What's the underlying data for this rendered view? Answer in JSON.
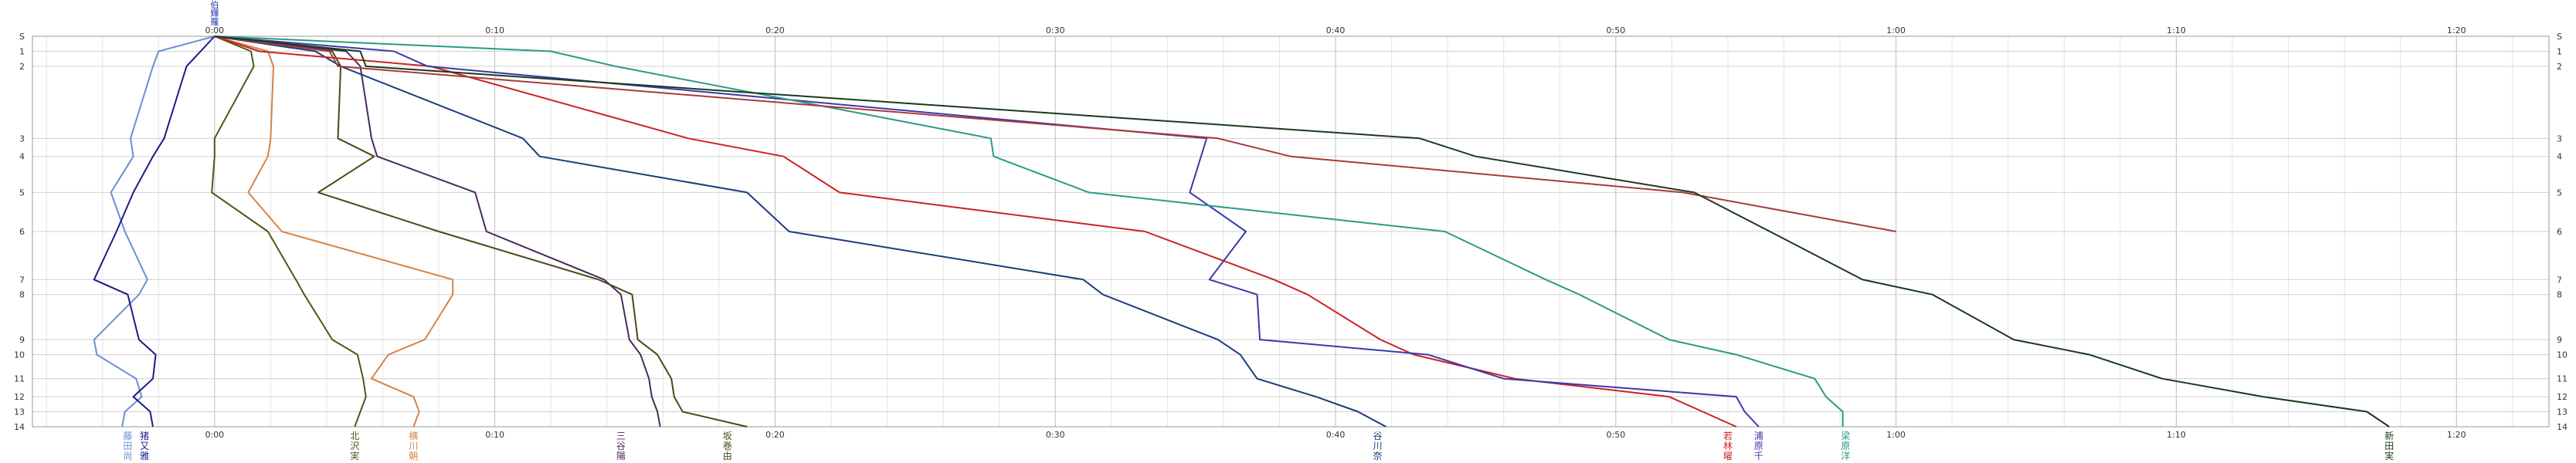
{
  "chart_data": {
    "type": "line",
    "title": "",
    "xlabel": "",
    "ylabel": "",
    "x_axis": {
      "unit": "minutes",
      "ticks": [
        {
          "value": 0,
          "label": "0:00"
        },
        {
          "value": 10,
          "label": "0:10"
        },
        {
          "value": 20,
          "label": "0:20"
        },
        {
          "value": 30,
          "label": "0:30"
        },
        {
          "value": 40,
          "label": "0:40"
        },
        {
          "value": 50,
          "label": "0:50"
        },
        {
          "value": 60,
          "label": "1:00"
        },
        {
          "value": 70,
          "label": "1:10"
        },
        {
          "value": 80,
          "label": "1:20"
        }
      ],
      "range": [
        -6.5,
        83.3
      ]
    },
    "y_axis": {
      "ticks": [
        {
          "value": 0,
          "label": "S"
        },
        {
          "value": 1,
          "label": "1"
        },
        {
          "value": 2,
          "label": "2"
        },
        {
          "value": 3,
          "label": "3"
        },
        {
          "value": 4,
          "label": "4"
        },
        {
          "value": 5,
          "label": "5"
        },
        {
          "value": 6,
          "label": "6"
        },
        {
          "value": 7,
          "label": "7"
        },
        {
          "value": 8,
          "label": "8"
        },
        {
          "value": 9,
          "label": "9"
        },
        {
          "value": 10,
          "label": "10"
        },
        {
          "value": 11,
          "label": "11"
        },
        {
          "value": 12,
          "label": "12"
        },
        {
          "value": 13,
          "label": "13"
        },
        {
          "value": 14,
          "label": "14"
        }
      ],
      "positions": [
        0,
        0.5,
        1,
        3.4,
        4,
        5.2,
        6.5,
        8.1,
        8.6,
        10.1,
        10.6,
        11.4,
        12,
        12.5,
        13
      ]
    },
    "grid": true,
    "top_markers": [
      {
        "text": "伯",
        "color": "#2233aa"
      },
      {
        "text": "輝",
        "color": "#2233aa"
      },
      {
        "text": "羅",
        "color": "#2233aa"
      }
    ],
    "series": [
      {
        "name": "藤田尚",
        "label_time": -3.1,
        "color": "#6a8ed6",
        "times": [
          0,
          -2,
          -2.2,
          -3,
          -2.9,
          -3.7,
          -3.2,
          -2.4,
          -2.7,
          -4.3,
          -4.2,
          -2.8,
          -2.6,
          -3.2,
          -3.3
        ],
        "rows": [
          0,
          0.5,
          1,
          3.4,
          4,
          5.2,
          6.5,
          8.1,
          8.6,
          10.1,
          10.6,
          11.4,
          12,
          12.5,
          13
        ]
      },
      {
        "name": "猪又雅",
        "label_time": -2.5,
        "color": "#1a1a8a",
        "times": [
          0,
          -0.5,
          -1,
          -1.8,
          -2.2,
          -2.9,
          -3.5,
          -4.3,
          -3.1,
          -2.7,
          -2.1,
          -2.2,
          -2.9,
          -2.3,
          -2.2
        ],
        "rows": [
          0,
          0.5,
          1,
          3.4,
          4,
          5.2,
          6.5,
          8.1,
          8.6,
          10.1,
          10.6,
          11.4,
          12,
          12.5,
          13
        ]
      },
      {
        "name": "北沢実",
        "label_time": 5,
        "color": "#4a5a1a",
        "times": [
          0,
          1.3,
          1.4,
          0,
          0,
          -0.1,
          1.9,
          2.9,
          3.2,
          4.2,
          5.1,
          5.3,
          5.4,
          5.2,
          5
        ],
        "rows": [
          0,
          0.5,
          1,
          3.4,
          4,
          5.2,
          6.5,
          8.1,
          8.6,
          10.1,
          10.6,
          11.4,
          12,
          12.5,
          13
        ]
      },
      {
        "name": "横川朝",
        "label_time": 7.1,
        "color": "#d4844a",
        "times": [
          0,
          1.9,
          2.1,
          2,
          1.9,
          1.2,
          2.4,
          8.5,
          8.5,
          7.5,
          6.2,
          5.6,
          7.1,
          7.3,
          7.1
        ],
        "rows": [
          0,
          0.5,
          1,
          3.4,
          4,
          5.2,
          6.5,
          8.1,
          8.6,
          10.1,
          10.6,
          11.4,
          12,
          12.5,
          13
        ]
      },
      {
        "name": "三谷陽",
        "label_time": 14.5,
        "color": "#4a2a5a",
        "times": [
          0,
          4.7,
          5.2,
          5.6,
          5.8,
          9.3,
          9.7,
          13.9,
          14.5,
          14.8,
          15.2,
          15.5,
          15.6,
          15.8,
          15.9
        ],
        "rows": [
          0,
          0.5,
          1,
          3.4,
          4,
          5.2,
          6.5,
          8.1,
          8.6,
          10.1,
          10.6,
          11.4,
          12,
          12.5,
          13
        ]
      },
      {
        "name": "坂巻由",
        "label_time": 18.3,
        "color": "#4a4a1a",
        "times": [
          0,
          4.2,
          4.5,
          4.4,
          5.7,
          3.7,
          8,
          13.7,
          14.9,
          15.1,
          15.8,
          16.3,
          16.4,
          16.7,
          19
        ],
        "rows": [
          0,
          0.5,
          1,
          3.4,
          4,
          5.2,
          6.5,
          8.1,
          8.6,
          10.1,
          10.6,
          11.4,
          12,
          12.5,
          13
        ]
      },
      {
        "name": "谷川奈",
        "label_time": 41.5,
        "color": "#1a3e7a",
        "times": [
          0,
          3.6,
          4.5,
          11,
          11.6,
          19,
          20.5,
          31,
          31.7,
          35.8,
          36.6,
          37.2,
          39.3,
          40.8,
          41.8
        ],
        "rows": [
          0,
          0.5,
          1,
          3.4,
          4,
          5.2,
          6.5,
          8.1,
          8.6,
          10.1,
          10.6,
          11.4,
          12,
          12.5,
          13
        ]
      },
      {
        "name": "若林曜",
        "label_time": 54,
        "color": "#cc2222",
        "times": [
          0,
          1.6,
          7.7,
          16.9,
          20.3,
          22.3,
          33.2,
          37.8,
          39,
          41.6,
          42.8,
          46.4,
          51.9,
          53.1,
          54.3
        ],
        "rows": [
          0,
          0.5,
          1,
          3.4,
          4,
          5.2,
          6.5,
          8.1,
          8.6,
          10.1,
          10.6,
          11.4,
          12,
          12.5,
          13
        ]
      },
      {
        "name": "浦原千",
        "label_time": 55.1,
        "color": "#3a3aaa",
        "times": [
          0,
          6.4,
          7.6,
          35.4,
          35.2,
          34.8,
          36.8,
          35.5,
          37.2,
          37.3,
          43.3,
          46,
          54.3,
          54.6,
          55.1
        ],
        "rows": [
          0,
          0.5,
          1,
          3.4,
          4,
          5.2,
          6.5,
          8.1,
          8.6,
          10.1,
          10.6,
          11.4,
          12,
          12.5,
          13
        ]
      },
      {
        "name": "梁原洋",
        "label_time": 58.2,
        "color": "#2a9a8a",
        "times": [
          0,
          12,
          14.3,
          27.7,
          27.8,
          31.2,
          43.9,
          47.5,
          48.7,
          51.9,
          54.3,
          57.1,
          57.5,
          58.1,
          58.1
        ],
        "rows": [
          0,
          0.5,
          1,
          3.4,
          4,
          5.2,
          6.5,
          8.1,
          8.6,
          10.1,
          10.6,
          11.4,
          12,
          12.5,
          13
        ]
      },
      {
        "name": "茶色",
        "label_time": null,
        "color": "#a83a3a",
        "times": [
          0,
          4.1,
          4.4,
          35.8,
          38.4,
          52.4,
          60
        ],
        "rows": [
          0,
          0.5,
          1,
          3.4,
          4,
          5.2,
          6.5
        ]
      },
      {
        "name": "新田実",
        "label_time": 77.6,
        "color": "#1a3a1a",
        "times": [
          0,
          5.2,
          5.4,
          43,
          45,
          52.8,
          55.5,
          58.8,
          61.3,
          64.2,
          66.9,
          69.5,
          73.1,
          76.8,
          77.6
        ],
        "rows": [
          0,
          0.5,
          1,
          3.4,
          4,
          5.2,
          6.5,
          8.1,
          8.6,
          10.1,
          10.6,
          11.4,
          12,
          12.5,
          13
        ]
      }
    ]
  }
}
